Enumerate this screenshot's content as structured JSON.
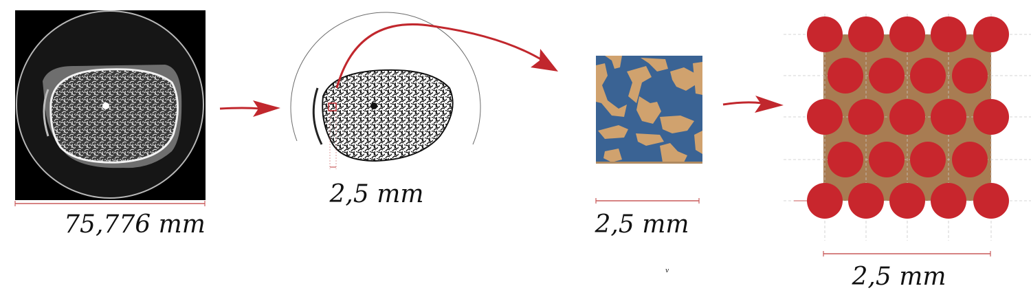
{
  "panels": {
    "ct_scan": {
      "scale_label": "75,776 mm"
    },
    "binarized": {
      "scale_label": "2,5 mm"
    },
    "voxel_crop": {
      "scale_label": "2,5 mm"
    },
    "lattice": {
      "scale_label": "2,5 mm"
    }
  },
  "stray_mark": "v",
  "colors": {
    "arrow": "#c1272d",
    "scale_bar": "#c85a5a",
    "pore": "#3a6394",
    "bone": "#d0a26e",
    "lattice_fill": "#a87c52",
    "sphere": "#c8262d"
  }
}
